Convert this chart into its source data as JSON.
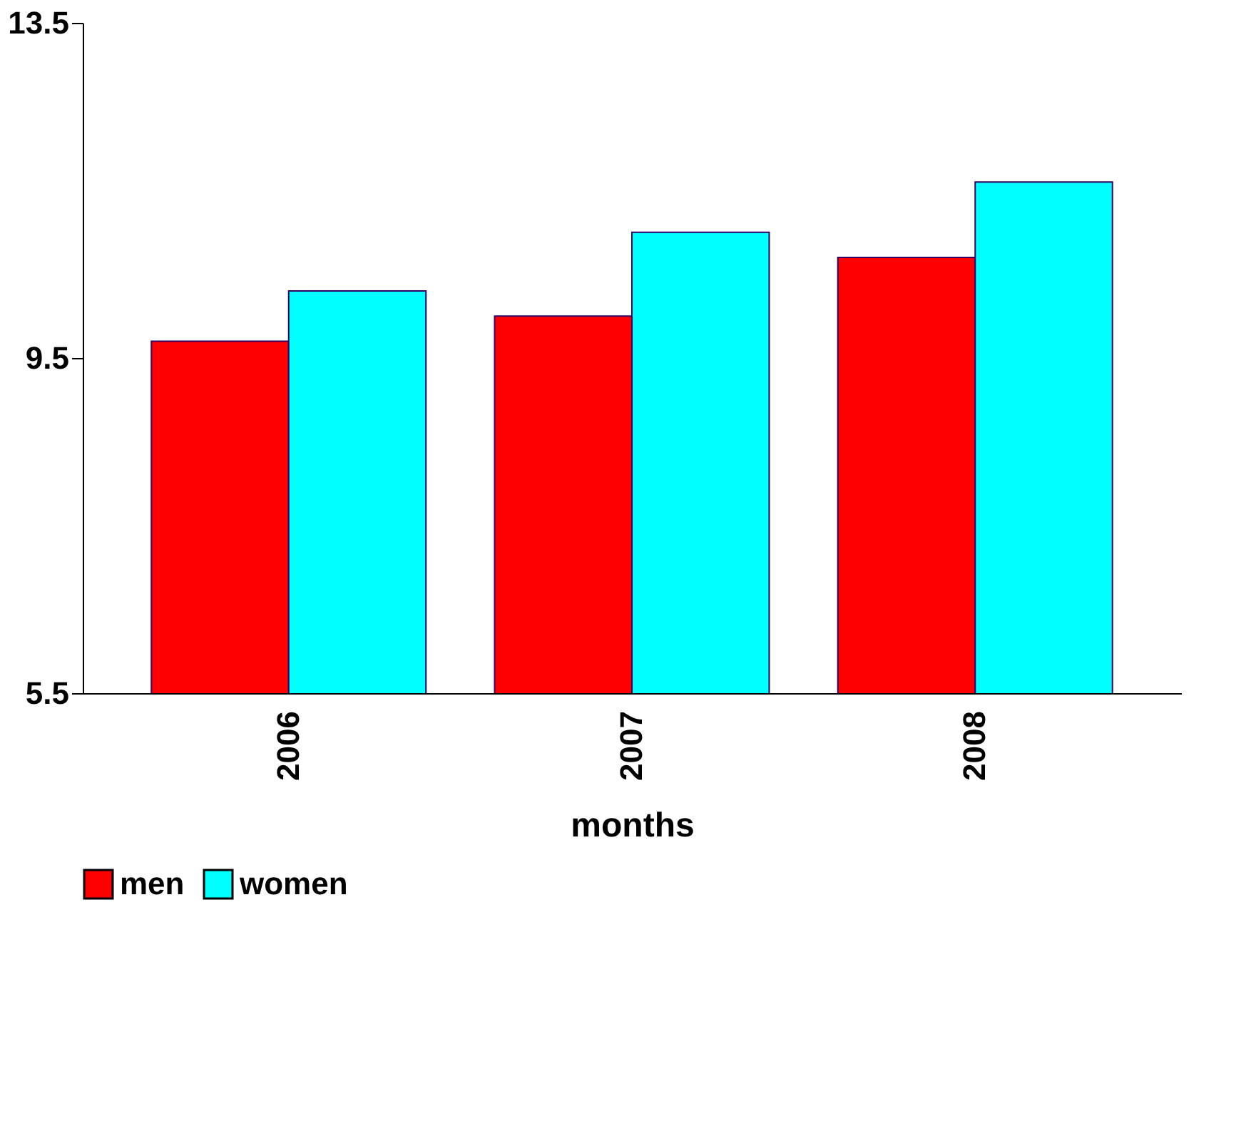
{
  "chart_data": {
    "type": "bar",
    "xlabel": "months",
    "categories": [
      "2006",
      "2007",
      "2008"
    ],
    "series": [
      {
        "name": "men",
        "color": "#ff0000",
        "values": [
          9.7,
          10.0,
          10.7
        ]
      },
      {
        "name": "women",
        "color": "#00ffff",
        "values": [
          10.3,
          11.0,
          11.6
        ]
      }
    ],
    "ylim": [
      5.5,
      13.5
    ],
    "yticks": [
      5.5,
      9.5,
      13.5
    ],
    "grid": false,
    "legend": "bottom"
  }
}
